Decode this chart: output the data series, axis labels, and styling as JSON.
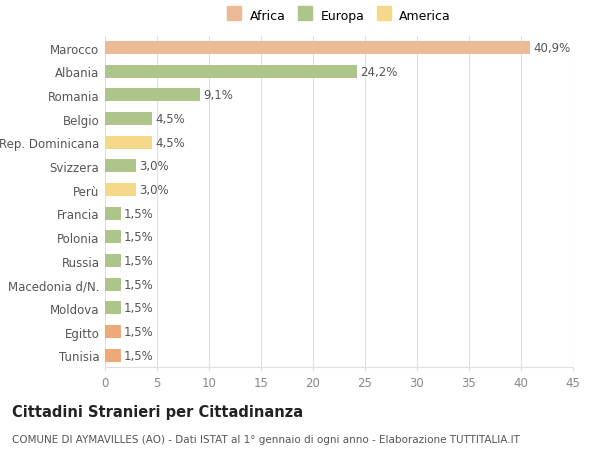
{
  "categories": [
    "Tunisia",
    "Egitto",
    "Moldova",
    "Macedonia d/N.",
    "Russia",
    "Polonia",
    "Francia",
    "Perù",
    "Svizzera",
    "Rep. Dominicana",
    "Belgio",
    "Romania",
    "Albania",
    "Marocco"
  ],
  "values": [
    1.5,
    1.5,
    1.5,
    1.5,
    1.5,
    1.5,
    1.5,
    3.0,
    3.0,
    4.5,
    4.5,
    9.1,
    24.2,
    40.9
  ],
  "labels": [
    "1,5%",
    "1,5%",
    "1,5%",
    "1,5%",
    "1,5%",
    "1,5%",
    "1,5%",
    "3,0%",
    "3,0%",
    "4,5%",
    "4,5%",
    "9,1%",
    "24,2%",
    "40,9%"
  ],
  "colors": [
    "#eca97a",
    "#eca97a",
    "#adc48a",
    "#adc48a",
    "#adc48a",
    "#adc48a",
    "#adc48a",
    "#f5d98b",
    "#adc48a",
    "#f5d98b",
    "#adc48a",
    "#adc48a",
    "#adc48a",
    "#edba96"
  ],
  "legend_labels": [
    "Africa",
    "Europa",
    "America"
  ],
  "legend_colors": [
    "#edba96",
    "#adc48a",
    "#f5d98b"
  ],
  "title": "Cittadini Stranieri per Cittadinanza",
  "subtitle": "COMUNE DI AYMAVILLES (AO) - Dati ISTAT al 1° gennaio di ogni anno - Elaborazione TUTTITALIA.IT",
  "xlim": [
    0,
    45
  ],
  "xticks": [
    0,
    5,
    10,
    15,
    20,
    25,
    30,
    35,
    40,
    45
  ],
  "background_color": "#ffffff",
  "grid_color": "#e0e0e0",
  "bar_height": 0.55,
  "label_fontsize": 8.5,
  "tick_fontsize": 8.5,
  "title_fontsize": 10.5,
  "subtitle_fontsize": 7.5
}
